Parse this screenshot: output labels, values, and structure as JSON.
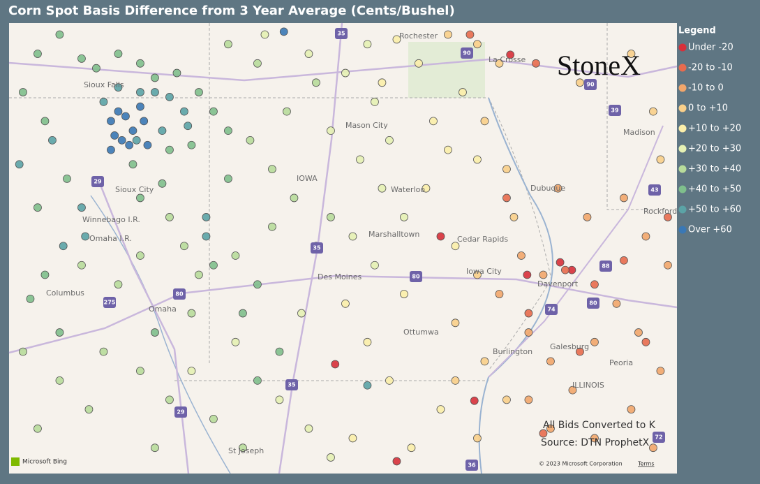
{
  "title": "Corn Spot Basis Difference from 3 Year Average (Cents/Bushel)",
  "logo": "StoneX",
  "notes": [
    "All Bids Converted to K",
    "Source: DTN ProphetX"
  ],
  "attribution": {
    "provider": "Microsoft Bing",
    "copyright": "© 2023 Microsoft Corporation",
    "terms": "Terms"
  },
  "map_labels": [
    "Rochester",
    "La Crosse",
    "Sioux Falls",
    "Mason City",
    "IOWA",
    "Waterloo",
    "Dubuque",
    "Madison",
    "Rockford",
    "Sioux City",
    "Winnebago I.R.",
    "Omaha I.R.",
    "Marshalltown",
    "Cedar Rapids",
    "Iowa City",
    "Davenport",
    "Des Moines",
    "Columbus",
    "Omaha",
    "Ottumwa",
    "Burlington",
    "Galesburg",
    "Peoria",
    "ILLINOIS",
    "St Joseph"
  ],
  "highway_shields": [
    "35",
    "90",
    "90",
    "39",
    "43",
    "80",
    "80",
    "80",
    "88",
    "74",
    "29",
    "29",
    "35",
    "35",
    "36",
    "275",
    "72"
  ],
  "legend": {
    "title": "Legend",
    "items": [
      {
        "label": "Under -20",
        "color": "#d7303a",
        "points": [
          [
            -91.15,
            43.89
          ],
          [
            -92.1,
            42.0
          ],
          [
            -90.92,
            41.6
          ],
          [
            -90.47,
            41.73
          ],
          [
            -90.31,
            41.65
          ],
          [
            -90.62,
            41.25
          ],
          [
            -91.64,
            40.29
          ],
          [
            -92.7,
            39.66
          ],
          [
            -93.54,
            40.67
          ]
        ]
      },
      {
        "label": "-20 to -10",
        "color": "#e86b4e",
        "points": [
          [
            -91.7,
            44.1
          ],
          [
            -90.8,
            43.8
          ],
          [
            -90.4,
            41.65
          ],
          [
            -90.0,
            41.5
          ],
          [
            -89.6,
            41.75
          ],
          [
            -90.2,
            40.8
          ],
          [
            -90.7,
            39.95
          ],
          [
            -89.3,
            40.9
          ],
          [
            -89.0,
            42.2
          ],
          [
            -91.2,
            42.4
          ],
          [
            -90.9,
            41.2
          ]
        ]
      },
      {
        "label": "-10 to 0",
        "color": "#f2a66b",
        "points": [
          [
            -91.3,
            41.4
          ],
          [
            -90.9,
            41.0
          ],
          [
            -90.6,
            40.7
          ],
          [
            -90.3,
            40.4
          ],
          [
            -90.0,
            40.9
          ],
          [
            -89.7,
            41.3
          ],
          [
            -89.4,
            41.0
          ],
          [
            -89.1,
            40.6
          ],
          [
            -89.5,
            40.2
          ],
          [
            -90.0,
            39.9
          ],
          [
            -90.6,
            40.0
          ],
          [
            -90.9,
            40.3
          ],
          [
            -90.5,
            42.5
          ],
          [
            -90.1,
            42.2
          ],
          [
            -89.6,
            42.4
          ],
          [
            -89.3,
            42.0
          ],
          [
            -89.0,
            41.7
          ],
          [
            -91.0,
            41.8
          ],
          [
            -89.2,
            39.8
          ],
          [
            -90.7,
            41.6
          ]
        ]
      },
      {
        "label": "0 to +10",
        "color": "#f9cf8a",
        "points": [
          [
            -92.0,
            44.1
          ],
          [
            -91.6,
            44.0
          ],
          [
            -91.3,
            43.8
          ],
          [
            -91.5,
            43.2
          ],
          [
            -91.2,
            42.7
          ],
          [
            -91.1,
            42.2
          ],
          [
            -91.6,
            41.6
          ],
          [
            -91.9,
            41.1
          ],
          [
            -91.5,
            40.7
          ],
          [
            -91.2,
            40.3
          ],
          [
            -91.6,
            39.9
          ],
          [
            -90.2,
            43.6
          ],
          [
            -89.5,
            43.9
          ],
          [
            -89.2,
            43.3
          ],
          [
            -89.1,
            42.8
          ],
          [
            -91.9,
            40.5
          ]
        ]
      },
      {
        "label": "+10 to +20",
        "color": "#fbeeaa",
        "points": [
          [
            -92.7,
            44.05
          ],
          [
            -92.4,
            43.8
          ],
          [
            -92.9,
            43.6
          ],
          [
            -92.2,
            43.2
          ],
          [
            -92.0,
            42.9
          ],
          [
            -91.8,
            43.5
          ],
          [
            -92.3,
            42.5
          ],
          [
            -92.6,
            41.4
          ],
          [
            -93.4,
            41.3
          ],
          [
            -93.1,
            40.9
          ],
          [
            -92.8,
            40.5
          ],
          [
            -92.1,
            40.2
          ],
          [
            -92.5,
            39.8
          ],
          [
            -93.3,
            39.9
          ],
          [
            -91.6,
            42.8
          ],
          [
            -91.9,
            41.9
          ]
        ]
      },
      {
        "label": "+20 to +30",
        "color": "#e6f1b4",
        "points": [
          [
            -93.9,
            43.9
          ],
          [
            -93.4,
            43.7
          ],
          [
            -93.0,
            43.4
          ],
          [
            -93.6,
            43.1
          ],
          [
            -93.2,
            42.8
          ],
          [
            -92.9,
            42.5
          ],
          [
            -93.3,
            42.0
          ],
          [
            -93.0,
            41.7
          ],
          [
            -94.0,
            41.2
          ],
          [
            -94.3,
            40.3
          ],
          [
            -93.9,
            40.0
          ],
          [
            -93.6,
            39.7
          ],
          [
            -94.9,
            40.9
          ],
          [
            -95.5,
            40.6
          ],
          [
            -94.5,
            44.1
          ],
          [
            -93.1,
            44.0
          ],
          [
            -92.8,
            43.0
          ],
          [
            -92.6,
            42.2
          ]
        ]
      },
      {
        "label": "+30 to +40",
        "color": "#b8dc9b",
        "points": [
          [
            -97.0,
            41.7
          ],
          [
            -96.5,
            41.5
          ],
          [
            -96.2,
            41.8
          ],
          [
            -95.8,
            42.2
          ],
          [
            -95.6,
            41.9
          ],
          [
            -95.4,
            41.6
          ],
          [
            -94.9,
            41.8
          ],
          [
            -94.4,
            42.1
          ],
          [
            -94.1,
            42.4
          ],
          [
            -94.4,
            42.7
          ],
          [
            -94.7,
            43.0
          ],
          [
            -94.2,
            43.3
          ],
          [
            -93.8,
            43.6
          ],
          [
            -94.6,
            43.8
          ],
          [
            -95.0,
            44.0
          ],
          [
            -97.8,
            40.8
          ],
          [
            -97.3,
            40.5
          ],
          [
            -96.7,
            40.8
          ],
          [
            -96.2,
            40.6
          ],
          [
            -95.8,
            40.3
          ],
          [
            -95.2,
            40.1
          ],
          [
            -94.8,
            39.8
          ],
          [
            -96.9,
            40.2
          ],
          [
            -97.6,
            40.0
          ],
          [
            -96.0,
            39.8
          ],
          [
            -95.5,
            41.2
          ],
          [
            -93.8,
            41.9
          ],
          [
            -93.6,
            42.2
          ]
        ]
      },
      {
        "label": "+40 to +50",
        "color": "#7fbf8c",
        "points": [
          [
            -97.3,
            44.1
          ],
          [
            -97.0,
            43.85
          ],
          [
            -96.8,
            43.75
          ],
          [
            -96.5,
            43.9
          ],
          [
            -96.2,
            43.8
          ],
          [
            -96.0,
            43.65
          ],
          [
            -95.7,
            43.7
          ],
          [
            -95.4,
            43.5
          ],
          [
            -95.2,
            43.3
          ],
          [
            -95.0,
            43.1
          ],
          [
            -95.5,
            42.95
          ],
          [
            -95.8,
            42.9
          ],
          [
            -96.3,
            42.75
          ],
          [
            -97.6,
            43.9
          ],
          [
            -97.8,
            43.5
          ],
          [
            -97.5,
            43.2
          ],
          [
            -97.2,
            42.6
          ],
          [
            -97.6,
            42.3
          ],
          [
            -96.2,
            42.4
          ],
          [
            -95.9,
            42.55
          ],
          [
            -95.0,
            42.6
          ],
          [
            -95.2,
            41.7
          ],
          [
            -94.6,
            41.5
          ],
          [
            -94.8,
            41.2
          ],
          [
            -97.5,
            41.6
          ],
          [
            -97.7,
            41.35
          ],
          [
            -96.0,
            41.0
          ],
          [
            -97.3,
            41.0
          ],
          [
            -94.3,
            40.8
          ],
          [
            -94.6,
            40.5
          ]
        ]
      },
      {
        "label": "+50 to +60",
        "color": "#5ba3a6",
        "points": [
          [
            -96.5,
            43.55
          ],
          [
            -96.2,
            43.5
          ],
          [
            -96.0,
            43.5
          ],
          [
            -95.8,
            43.45
          ],
          [
            -95.6,
            43.3
          ],
          [
            -95.9,
            43.1
          ],
          [
            -96.7,
            43.4
          ],
          [
            -96.25,
            43.0
          ],
          [
            -95.55,
            43.15
          ],
          [
            -97.85,
            42.75
          ],
          [
            -97.0,
            42.3
          ],
          [
            -96.95,
            42.0
          ],
          [
            -97.25,
            41.9
          ],
          [
            -95.3,
            42.2
          ],
          [
            -95.3,
            42.0
          ],
          [
            -93.1,
            40.45
          ],
          [
            -97.4,
            43.0
          ]
        ]
      },
      {
        "label": "Over +60",
        "color": "#3a78b5",
        "points": [
          [
            -96.6,
            43.2
          ],
          [
            -96.5,
            43.3
          ],
          [
            -96.4,
            43.25
          ],
          [
            -96.3,
            43.1
          ],
          [
            -96.45,
            43.0
          ],
          [
            -96.2,
            43.35
          ],
          [
            -96.55,
            43.05
          ],
          [
            -96.35,
            42.95
          ],
          [
            -96.15,
            43.2
          ],
          [
            -96.1,
            42.95
          ],
          [
            -96.6,
            42.9
          ],
          [
            -94.24,
            44.13
          ]
        ]
      }
    ]
  }
}
